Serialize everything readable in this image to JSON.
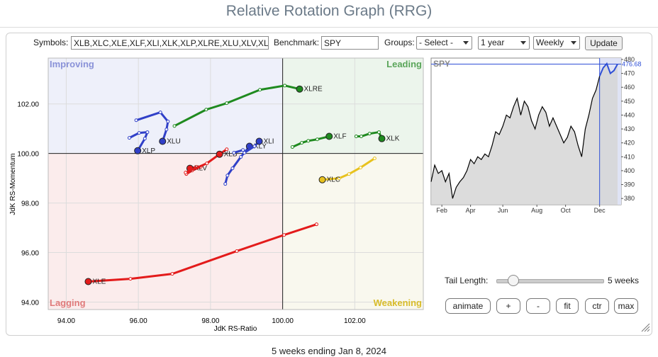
{
  "header": {
    "title": "Relative Rotation Graph (RRG)"
  },
  "controls": {
    "symbols_label": "Symbols:",
    "symbols": "XLB,XLC,XLE,XLF,XLI,XLK,XLP,XLRE,XLU,XLV,XL",
    "benchmark_label": "Benchmark:",
    "benchmark": "SPY",
    "groups_label": "Groups:",
    "groups": "- Select -",
    "period": "1 year",
    "frequency": "Weekly",
    "update": "Update"
  },
  "chart_data": [
    {
      "type": "rrg",
      "xlabel": "JdK RS-Ratio",
      "ylabel": "JdK RS-Momentum",
      "quadrants": [
        "Improving",
        "Leading",
        "Lagging",
        "Weakening"
      ],
      "quadrant_colors": [
        "#eef0fa",
        "#ecf5ec",
        "#fbecec",
        "#f9f8ee"
      ],
      "quadrant_label_colors": [
        "#8a92d8",
        "#5aa55a",
        "#e07a7a",
        "#d8bc2a"
      ],
      "center": 100,
      "xlim": [
        93.5,
        103.9
      ],
      "ylim": [
        93.7,
        103.85
      ],
      "xticks": [
        {
          "value": 94,
          "label": "94.00"
        },
        {
          "value": 96,
          "label": "96.00"
        },
        {
          "value": 98,
          "label": "98.00"
        },
        {
          "value": 100,
          "label": "100.00"
        },
        {
          "value": 102,
          "label": "102.00"
        }
      ],
      "yticks": [
        {
          "value": 94,
          "label": "94.00"
        },
        {
          "value": 96,
          "label": "96.00"
        },
        {
          "value": 98,
          "label": "98.00"
        },
        {
          "value": 100,
          "label": "100.00"
        },
        {
          "value": 102,
          "label": "102.00"
        }
      ],
      "series": [
        {
          "name": "XLRE",
          "color": "#1f8a1f",
          "x": [
            97.0,
            97.88,
            98.45,
            99.37,
            100.06,
            100.47
          ],
          "values": [
            101.11,
            101.77,
            102.03,
            102.57,
            102.74,
            102.6
          ]
        },
        {
          "name": "XLF",
          "color": "#1f8a1f",
          "x": [
            100.27,
            100.53,
            100.71,
            100.96,
            101.29
          ],
          "values": [
            100.26,
            100.43,
            100.51,
            100.57,
            100.69
          ]
        },
        {
          "name": "XLK",
          "color": "#1f8a1f",
          "x": [
            102.04,
            102.18,
            102.41,
            102.67,
            102.75
          ],
          "values": [
            100.69,
            100.69,
            100.8,
            100.86,
            100.6
          ]
        },
        {
          "name": "XLC",
          "color": "#e8c21e",
          "x": [
            102.55,
            102.16,
            101.84,
            101.57,
            101.1
          ],
          "values": [
            99.8,
            99.43,
            99.17,
            99.0,
            98.94
          ]
        },
        {
          "name": "XLE",
          "color": "#e31b1b",
          "x": [
            100.94,
            100.04,
            98.73,
            96.94,
            95.78,
            94.61
          ],
          "values": [
            97.14,
            96.71,
            96.06,
            95.14,
            94.94,
            94.83
          ]
        },
        {
          "name": "XLV",
          "color": "#e31b1b",
          "x": [
            97.33,
            97.49,
            97.73,
            97.61,
            97.43
          ],
          "values": [
            99.17,
            99.31,
            99.46,
            99.46,
            99.4
          ]
        },
        {
          "name": "XLB",
          "color": "#e31b1b",
          "x": [
            97.31,
            97.9,
            98.22,
            98.45,
            98.25
          ],
          "values": [
            99.23,
            99.6,
            99.94,
            100.17,
            99.97
          ]
        },
        {
          "name": "XLP",
          "color": "#3040c8",
          "x": [
            95.75,
            96.02,
            96.25,
            96.18,
            95.98
          ],
          "values": [
            100.63,
            100.83,
            100.86,
            100.6,
            100.11
          ]
        },
        {
          "name": "XLU",
          "color": "#3040c8",
          "x": [
            95.94,
            96.61,
            96.82,
            96.78,
            96.67
          ],
          "values": [
            101.34,
            101.66,
            101.29,
            100.97,
            100.49
          ]
        },
        {
          "name": "XLY",
          "color": "#3040c8",
          "x": [
            98.41,
            98.47,
            98.61,
            98.84,
            99.08
          ],
          "values": [
            98.77,
            99.11,
            99.4,
            99.86,
            100.29
          ]
        },
        {
          "name": "XLI",
          "color": "#3040c8",
          "x": [
            98.65,
            98.9,
            98.94,
            99.22,
            99.35
          ],
          "values": [
            100.03,
            100.14,
            100.03,
            100.29,
            100.49
          ]
        }
      ]
    },
    {
      "type": "line",
      "title": "SPY",
      "color": "#000000",
      "highlight_color": "#2f4fd6",
      "values": [
        392,
        404,
        398,
        400,
        392,
        398,
        380,
        388,
        392,
        395,
        400,
        408,
        405,
        410,
        408,
        412,
        410,
        418,
        428,
        426,
        432,
        440,
        438,
        446,
        452,
        440,
        450,
        446,
        436,
        430,
        440,
        446,
        442,
        432,
        438,
        432,
        426,
        420,
        424,
        432,
        428,
        418,
        410,
        430,
        440,
        452,
        458,
        468,
        474,
        477,
        470,
        472,
        476.68
      ],
      "last": 476.68,
      "xlim": [
        0,
        53
      ],
      "ylim": [
        375.5,
        481
      ],
      "xticks": [
        {
          "value": 3,
          "label": "Feb"
        },
        {
          "value": 11,
          "label": "Apr"
        },
        {
          "value": 20,
          "label": "Jun"
        },
        {
          "value": 29.5,
          "label": "Aug"
        },
        {
          "value": 37.5,
          "label": "Oct"
        },
        {
          "value": 47,
          "label": "Dec"
        }
      ],
      "yticks": [
        380,
        390,
        400,
        410,
        420,
        430,
        440,
        450,
        460,
        470,
        480
      ]
    }
  ],
  "tail": {
    "label": "Tail Length:",
    "value": "5 weeks"
  },
  "buttons": [
    "animate",
    "+",
    "-",
    "fit",
    "ctr",
    "max"
  ],
  "footer": "5 weeks ending Jan 8, 2024"
}
